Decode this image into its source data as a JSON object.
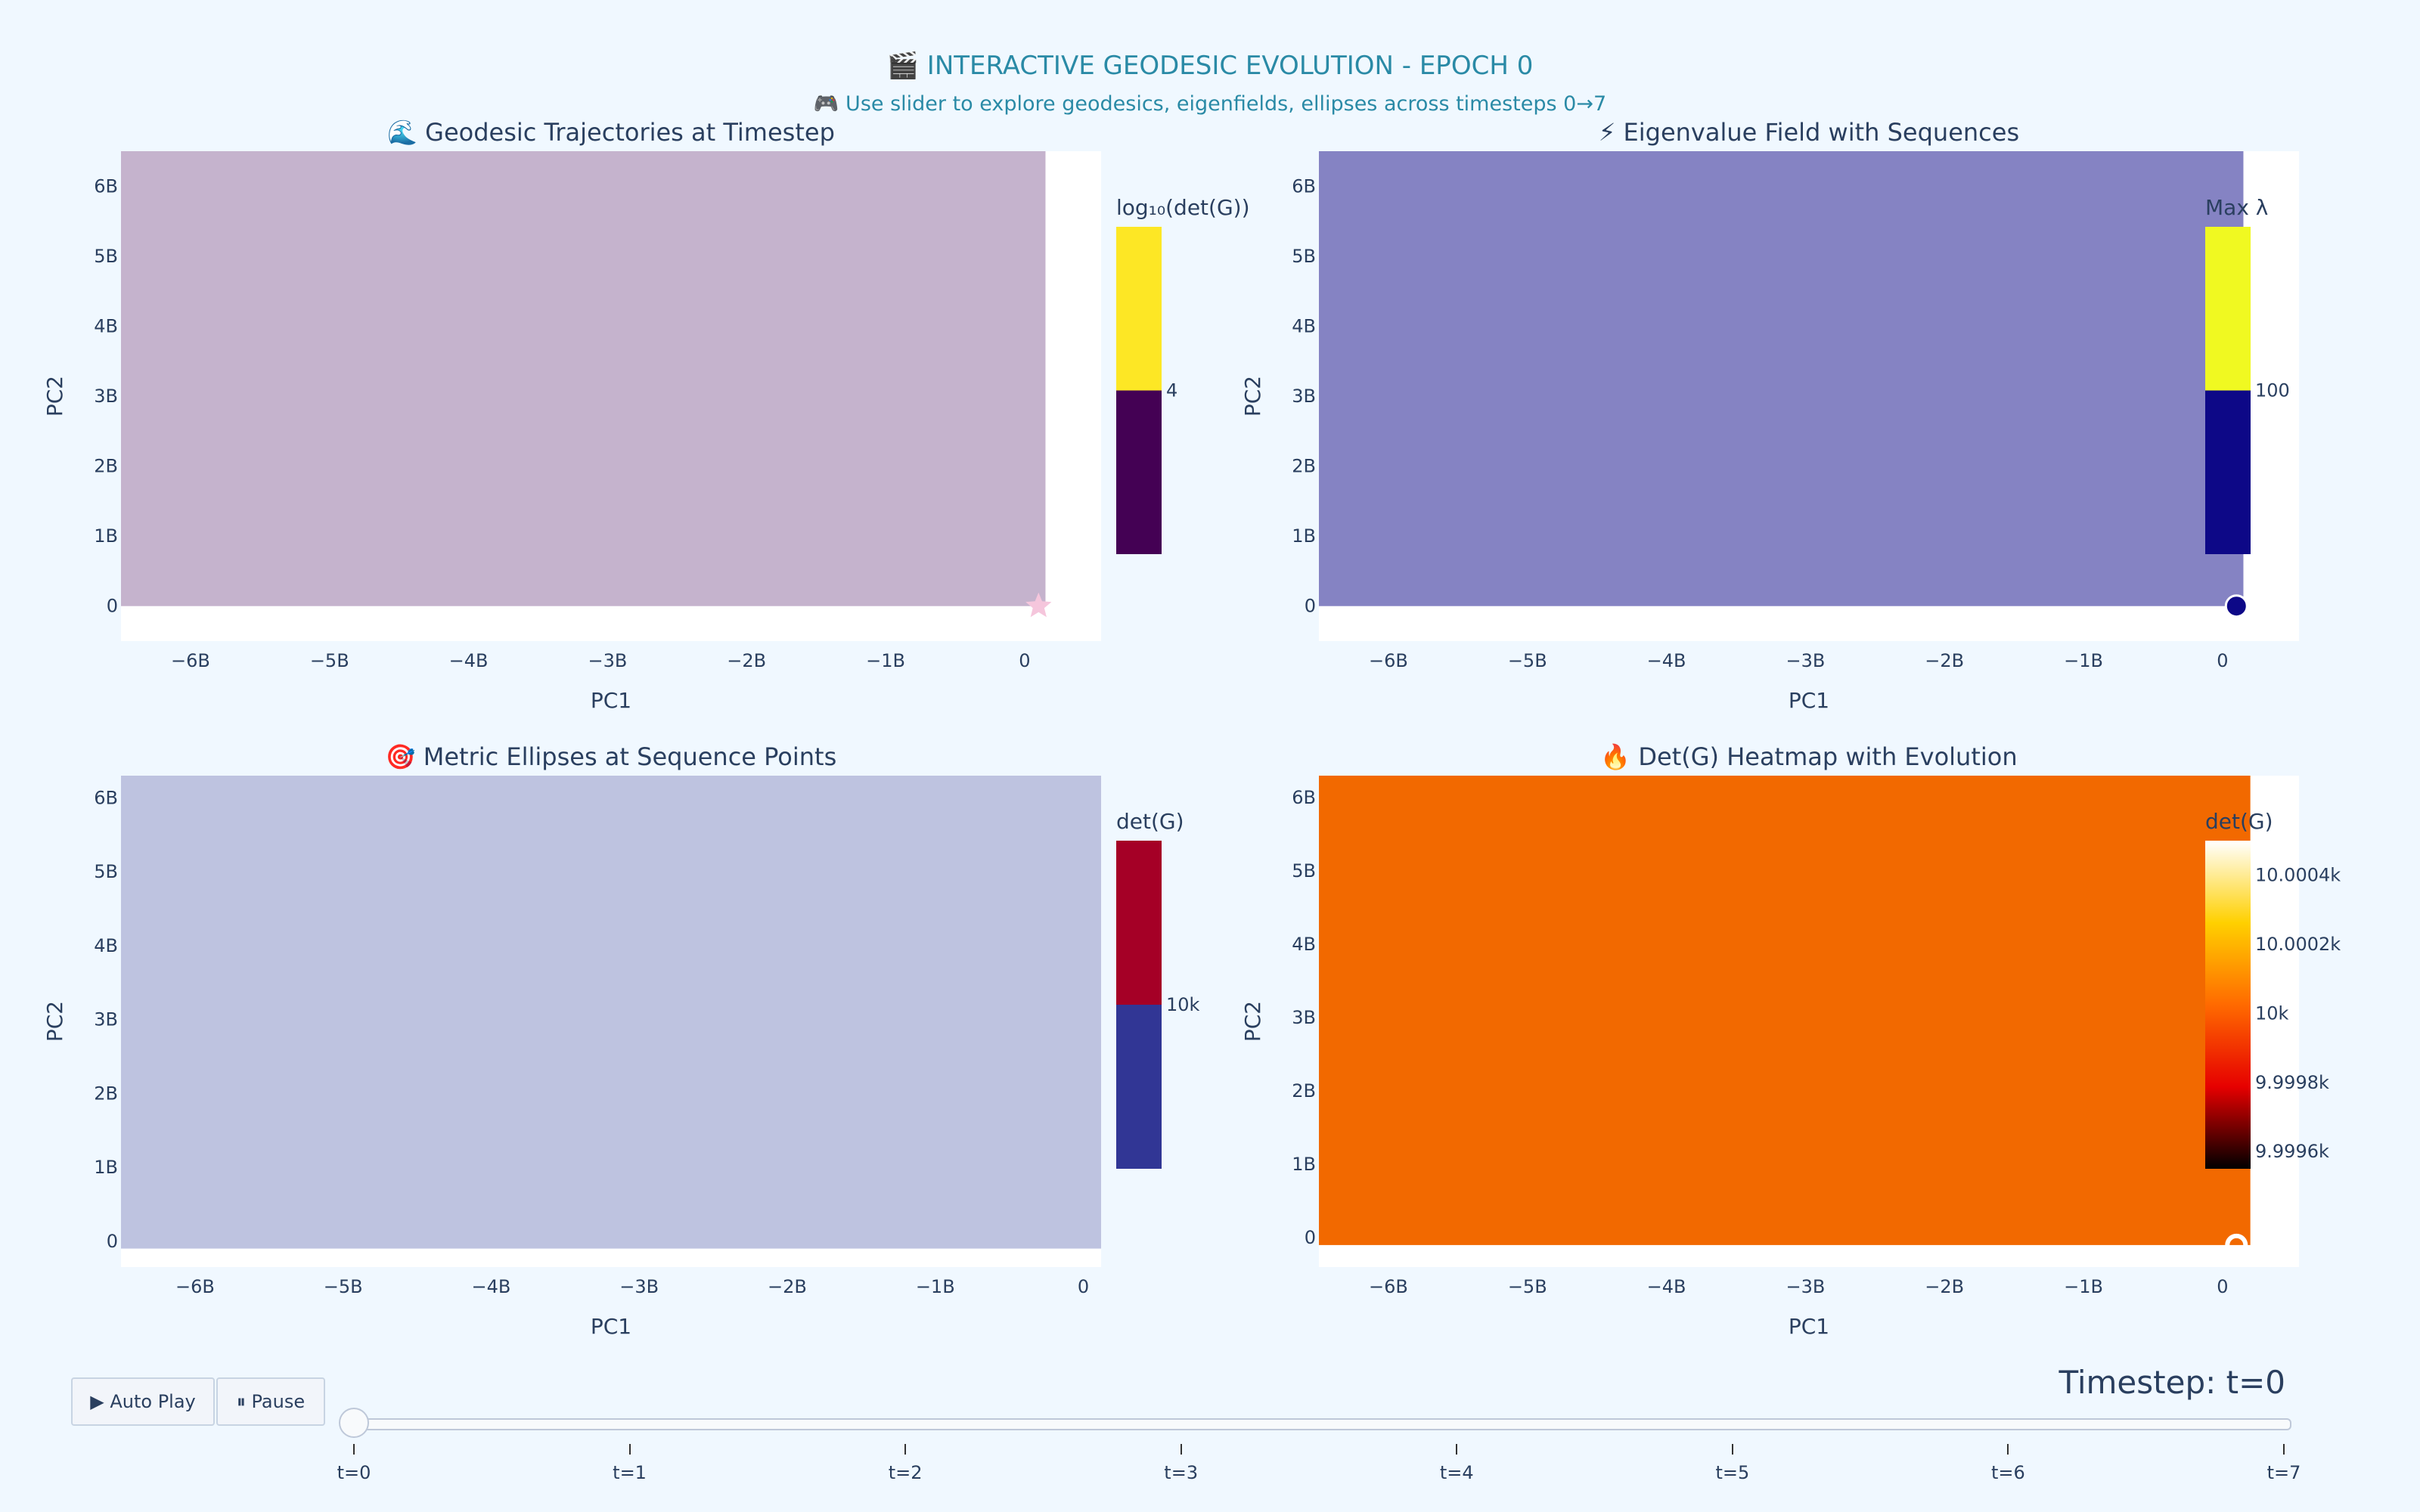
{
  "header": {
    "title": "🎬 INTERACTIVE GEODESIC EVOLUTION - EPOCH 0",
    "subtitle": "🎮 Use slider to explore geodesics, eigenfields, ellipses across timesteps 0→7"
  },
  "colors": {
    "page_bg": "#f0f8ff",
    "plot_bg": "#ffffff",
    "title": "#2a8aa6"
  },
  "chart_data": [
    {
      "type": "heatmap",
      "title": "🌊 Geodesic Trajectories at Timestep",
      "xlabel": "PC1",
      "ylabel": "PC2",
      "xlim": [
        -6500000000.0,
        550000000.0
      ],
      "ylim": [
        -500000000.0,
        6500000000.0
      ],
      "x_ticks": [
        -6000000000.0,
        -5000000000.0,
        -4000000000.0,
        -3000000000.0,
        -2000000000.0,
        -1000000000.0,
        0
      ],
      "x_tick_labels": [
        "−6B",
        "−5B",
        "−4B",
        "−3B",
        "−2B",
        "−1B",
        "0"
      ],
      "y_ticks": [
        0,
        1000000000.0,
        2000000000.0,
        3000000000.0,
        4000000000.0,
        5000000000.0,
        6000000000.0
      ],
      "y_tick_labels": [
        "0",
        "1B",
        "2B",
        "3B",
        "4B",
        "5B",
        "6B"
      ],
      "heat_extent": {
        "x": [
          -6500000000.0,
          150000000.0
        ],
        "y": [
          0,
          6500000000.0
        ]
      },
      "heat_color": "#c5b3cd",
      "colorbar": {
        "title": "log₁₀(det(G))",
        "colors": [
          "#fde725",
          "#440154"
        ],
        "range": [
          3,
          5
        ],
        "ticks": [
          4
        ],
        "tick_labels": [
          "4"
        ]
      },
      "marker": {
        "symbol": "star",
        "color": "#f5c6dc",
        "x": 100000000.0,
        "y": 0
      }
    },
    {
      "type": "heatmap",
      "title": "⚡ Eigenvalue Field with Sequences",
      "xlabel": "PC1",
      "ylabel": "PC2",
      "xlim": [
        -6500000000.0,
        550000000.0
      ],
      "ylim": [
        -500000000.0,
        6500000000.0
      ],
      "x_ticks": [
        -6000000000.0,
        -5000000000.0,
        -4000000000.0,
        -3000000000.0,
        -2000000000.0,
        -1000000000.0,
        0
      ],
      "x_tick_labels": [
        "−6B",
        "−5B",
        "−4B",
        "−3B",
        "−2B",
        "−1B",
        "0"
      ],
      "y_ticks": [
        0,
        1000000000.0,
        2000000000.0,
        3000000000.0,
        4000000000.0,
        5000000000.0,
        6000000000.0
      ],
      "y_tick_labels": [
        "0",
        "1B",
        "2B",
        "3B",
        "4B",
        "5B",
        "6B"
      ],
      "heat_extent": {
        "x": [
          -6500000000.0,
          150000000.0
        ],
        "y": [
          0,
          6500000000.0
        ]
      },
      "heat_color": "#8583c3",
      "colorbar": {
        "title": "Max λ",
        "colors": [
          "#f0f921",
          "#0d0887"
        ],
        "range": [
          99,
          101
        ],
        "ticks": [
          100
        ],
        "tick_labels": [
          "100"
        ]
      },
      "marker": {
        "symbol": "circle",
        "color": "#0d0887",
        "x": 100000000.0,
        "y": 0
      }
    },
    {
      "type": "heatmap",
      "title": "🎯 Metric Ellipses at Sequence Points",
      "xlabel": "PC1",
      "ylabel": "PC2",
      "xlim": [
        -6500000000.0,
        120000000.0
      ],
      "ylim": [
        -350000000.0,
        6300000000.0
      ],
      "x_ticks": [
        -6000000000.0,
        -5000000000.0,
        -4000000000.0,
        -3000000000.0,
        -2000000000.0,
        -1000000000.0,
        0
      ],
      "x_tick_labels": [
        "−6B",
        "−5B",
        "−4B",
        "−3B",
        "−2B",
        "−1B",
        "0"
      ],
      "y_ticks": [
        0,
        1000000000.0,
        2000000000.0,
        3000000000.0,
        4000000000.0,
        5000000000.0,
        6000000000.0
      ],
      "y_tick_labels": [
        "0",
        "1B",
        "2B",
        "3B",
        "4B",
        "5B",
        "6B"
      ],
      "heat_extent": {
        "x": [
          -6500000000.0,
          120000000.0
        ],
        "y": [
          -100000000.0,
          6300000000.0
        ]
      },
      "heat_color": "#bec3e0",
      "colorbar": {
        "title": "det(G)",
        "colors": [
          "#a50026",
          "#313695"
        ],
        "range": [
          9999,
          10001
        ],
        "ticks": [
          10000
        ],
        "tick_labels": [
          "10k"
        ]
      }
    },
    {
      "type": "heatmap",
      "title": "🔥 Det(G) Heatmap with Evolution",
      "xlabel": "PC1",
      "ylabel": "PC2",
      "xlim": [
        -6500000000.0,
        550000000.0
      ],
      "ylim": [
        -400000000.0,
        6300000000.0
      ],
      "x_ticks": [
        -6000000000.0,
        -5000000000.0,
        -4000000000.0,
        -3000000000.0,
        -2000000000.0,
        -1000000000.0,
        0
      ],
      "x_tick_labels": [
        "−6B",
        "−5B",
        "−4B",
        "−3B",
        "−2B",
        "−1B",
        "0"
      ],
      "y_ticks": [
        0,
        1000000000.0,
        2000000000.0,
        3000000000.0,
        4000000000.0,
        5000000000.0,
        6000000000.0
      ],
      "y_tick_labels": [
        "0",
        "1B",
        "2B",
        "3B",
        "4B",
        "5B",
        "6B"
      ],
      "heat_extent": {
        "x": [
          -6500000000.0,
          200000000.0
        ],
        "y": [
          -100000000.0,
          6300000000.0
        ]
      },
      "heat_color": "#f26900",
      "colorbar": {
        "title": "det(G)",
        "gradient": [
          "#000000",
          "#e60000",
          "#ff6a00",
          "#ffd000",
          "#ffffff"
        ],
        "range": [
          9999.55,
          10000.5
        ],
        "ticks": [
          9999.6,
          9999.8,
          10000,
          10000.2,
          10000.4
        ],
        "tick_labels": [
          "9.9996k",
          "9.9998k",
          "10k",
          "10.0002k",
          "10.0004k"
        ]
      },
      "marker": {
        "symbol": "open-circle",
        "color": "#ffffff",
        "x": 100000000.0,
        "y": -100000000.0
      }
    }
  ],
  "controls": {
    "play_label": "▶ Auto Play",
    "pause_label": "⏸ Pause",
    "slider_label": "Timestep: t=0",
    "current_step": 0,
    "steps": [
      "t=0",
      "t=1",
      "t=2",
      "t=3",
      "t=4",
      "t=5",
      "t=6",
      "t=7"
    ]
  }
}
